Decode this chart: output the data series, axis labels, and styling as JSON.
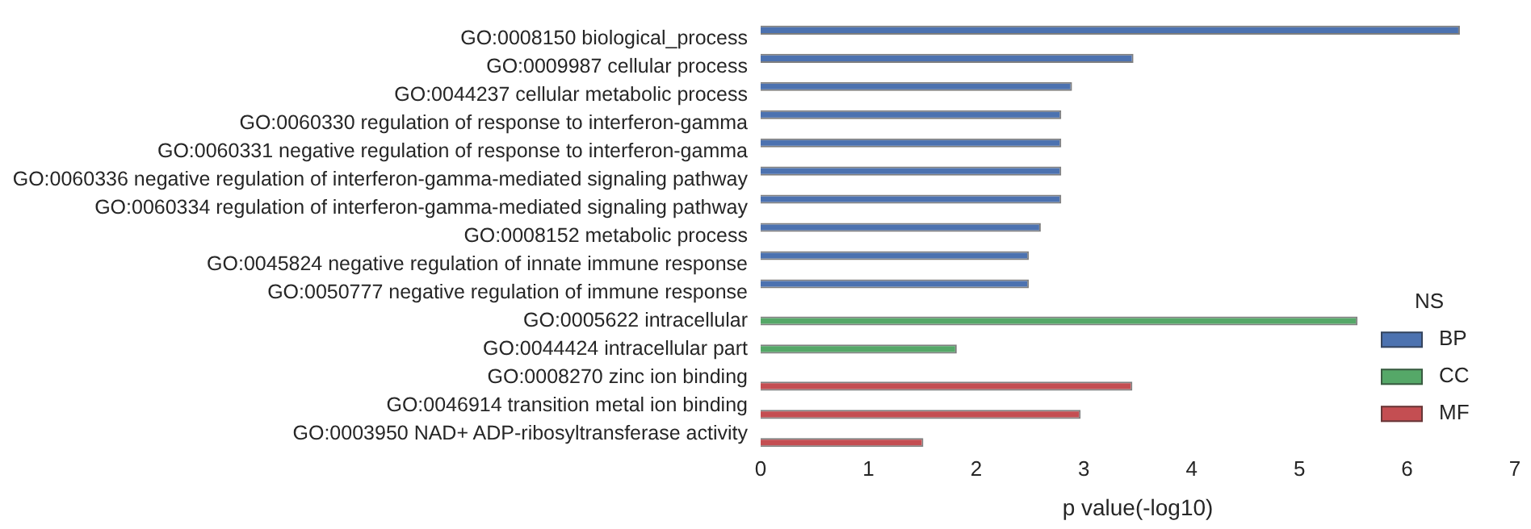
{
  "chart_data": {
    "type": "bar",
    "orientation": "horizontal",
    "xlabel": "p value(-log10)",
    "legend_title": "NS",
    "legend": "bottom right",
    "grid": false,
    "categories": [
      "GO:0008150 biological_process",
      "GO:0009987 cellular process",
      "GO:0044237 cellular metabolic process",
      "GO:0060330 regulation of response to interferon-gamma",
      "GO:0060331 negative regulation of response to interferon-gamma",
      "GO:0060336 negative regulation of interferon-gamma-mediated signaling pathway",
      "GO:0060334 regulation of interferon-gamma-mediated signaling pathway",
      "GO:0008152 metabolic process",
      "GO:0045824 negative regulation of innate immune response",
      "GO:0050777 negative regulation of immune response",
      "GO:0005622 intracellular",
      "GO:0044424 intracellular part",
      "GO:0008270 zinc ion binding",
      "GO:0046914 transition metal ion binding",
      "GO:0003950 NAD+ ADP-ribosyltransferase activity"
    ],
    "series": [
      {
        "name": "BP",
        "color": "#4c72b0",
        "values": [
          6.49,
          3.46,
          2.89,
          2.79,
          2.79,
          2.79,
          2.79,
          2.6,
          2.49,
          2.49,
          null,
          null,
          null,
          null,
          null
        ]
      },
      {
        "name": "CC",
        "color": "#55a868",
        "values": [
          null,
          null,
          null,
          null,
          null,
          null,
          null,
          null,
          null,
          null,
          5.54,
          1.82,
          null,
          null,
          null
        ]
      },
      {
        "name": "MF",
        "color": "#c44e52",
        "values": [
          null,
          null,
          null,
          null,
          null,
          null,
          null,
          null,
          null,
          null,
          null,
          null,
          3.45,
          2.97,
          1.51
        ]
      }
    ],
    "xlim": [
      0,
      7
    ],
    "xticks": [
      0,
      1,
      2,
      3,
      4,
      5,
      6,
      7
    ]
  }
}
